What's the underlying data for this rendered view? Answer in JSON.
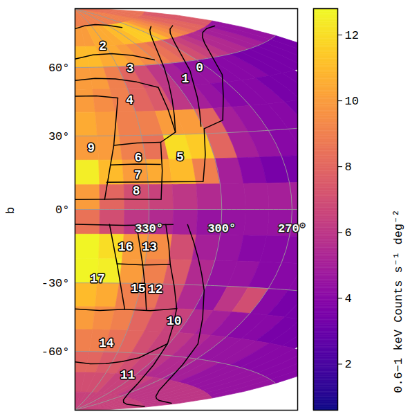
{
  "chart_data": {
    "type": "sky_map",
    "ylabel": "b",
    "xlim": [
      360,
      267.5
    ],
    "ylim": [
      -90,
      90
    ],
    "xticks": [
      {
        "value": 330,
        "label": "330°"
      },
      {
        "value": 300,
        "label": "300°"
      },
      {
        "value": 270,
        "label": "270°"
      }
    ],
    "yticks": [
      {
        "value": 60,
        "label": "60°"
      },
      {
        "value": 30,
        "label": "30°"
      },
      {
        "value": 0,
        "label": "0°"
      },
      {
        "value": -30,
        "label": "-30°"
      },
      {
        "value": -60,
        "label": "-60°"
      }
    ],
    "grid": true,
    "heatmap": {
      "l_edges": [
        360,
        350,
        340,
        330,
        320,
        310,
        300,
        290,
        280,
        270,
        260,
        250,
        240,
        230,
        220,
        210,
        200,
        190,
        180
      ],
      "b_edges": [
        90,
        80,
        70,
        60,
        50,
        40,
        30,
        20,
        10,
        0,
        -10,
        -20,
        -30,
        -40,
        -50,
        -60,
        -70,
        -80,
        -90
      ],
      "values": [
        [
          9,
          9,
          9,
          9,
          9,
          9,
          9,
          9,
          9,
          9,
          9,
          9,
          9,
          8.5,
          8.5,
          8.5,
          8.5,
          8.5
        ],
        [
          10,
          10,
          10.5,
          10.5,
          10.5,
          11,
          11,
          11.5,
          11.5,
          11,
          10,
          9.5,
          9,
          8.5,
          8,
          8,
          7.5,
          7.5
        ],
        [
          11,
          11,
          10.5,
          10.5,
          10,
          9.5,
          9,
          8.5,
          8,
          7,
          6.5,
          6,
          5.5,
          5.5,
          5,
          5,
          4.5,
          4.5
        ],
        [
          10,
          10,
          9,
          8,
          7,
          6,
          5,
          4.5,
          4.5,
          4,
          4,
          4,
          3.5,
          3.5,
          3.5,
          3.5,
          3.5,
          3.5
        ],
        [
          10,
          9.5,
          9,
          8,
          7.5,
          6,
          5,
          4.5,
          4,
          4,
          4,
          3.5,
          3.5,
          3.5,
          null,
          null,
          null,
          null
        ],
        [
          10.5,
          10,
          9,
          9,
          10,
          10,
          8,
          5,
          4.5,
          4,
          4,
          3.5,
          null,
          null,
          null,
          null,
          null,
          null
        ],
        [
          10,
          10,
          9,
          8.5,
          12,
          11.5,
          8,
          5,
          4.5,
          4,
          4,
          null,
          null,
          null,
          null,
          null,
          null,
          null
        ],
        [
          12.5,
          11,
          10,
          10.5,
          11,
          9,
          5,
          4,
          3.5,
          3.5,
          null,
          null,
          null,
          null,
          null,
          null,
          null,
          null
        ],
        [
          10,
          8,
          7,
          6.5,
          6,
          5.5,
          5,
          5,
          5,
          5,
          null,
          null,
          null,
          null,
          null,
          null,
          null,
          null
        ],
        [
          8.5,
          7,
          6,
          5.5,
          5,
          4.5,
          4.5,
          4.5,
          4.5,
          4.5,
          null,
          null,
          null,
          null,
          null,
          null,
          null,
          null
        ],
        [
          12.7,
          12,
          10,
          9.5,
          7,
          5,
          4.5,
          4,
          4,
          4,
          null,
          null,
          null,
          null,
          null,
          null,
          null,
          null
        ],
        [
          12.7,
          12.5,
          10,
          9,
          7.5,
          5.5,
          4.5,
          4.5,
          4,
          4,
          4,
          null,
          null,
          null,
          null,
          null,
          null,
          null
        ],
        [
          11,
          10.5,
          9,
          8.5,
          7,
          5.5,
          4.5,
          6,
          7,
          4,
          3.5,
          3.5,
          null,
          null,
          null,
          null,
          null,
          null
        ],
        [
          10,
          9.5,
          9,
          8,
          7,
          6.5,
          5.5,
          5,
          4.5,
          4,
          4,
          3.5,
          3.5,
          3.5,
          null,
          null,
          null,
          null
        ],
        [
          9,
          9,
          8.5,
          8,
          7,
          6.5,
          6,
          5.5,
          5,
          4.5,
          4.5,
          4.5,
          4,
          4,
          4,
          4,
          4,
          4
        ],
        [
          8,
          8,
          7.5,
          7.5,
          7,
          6.5,
          6,
          5.5,
          5.5,
          5,
          5,
          4.5,
          4.5,
          4.5,
          4.5,
          4.5,
          4.5,
          4.5
        ],
        [
          7,
          7,
          7,
          7,
          6.5,
          6.5,
          6.5,
          6.5,
          6,
          6,
          6,
          6,
          6,
          6,
          6,
          6,
          6,
          6
        ],
        [
          6.5,
          6.5,
          6.5,
          6.5,
          6.5,
          6.5,
          6.5,
          6.5,
          6.5,
          6.5,
          6.5,
          6.5,
          6.5,
          6.5,
          6.5,
          6.5,
          6.5,
          6.5
        ]
      ]
    },
    "colorbar": {
      "label": "0.6−1 keV Counts s⁻¹ deg⁻²",
      "range": [
        0.6,
        12.8
      ],
      "ticks": [
        2,
        4,
        6,
        8,
        10,
        12
      ],
      "color": "plasma"
    },
    "regions": {
      "labels": [
        "0",
        "1",
        "2",
        "3",
        "4",
        "5",
        "6",
        "7",
        "8",
        "9",
        "10",
        "11",
        "12",
        "13",
        "14",
        "15",
        "16",
        "17"
      ],
      "l": [
        275,
        292,
        333,
        322,
        331,
        315,
        333,
        334,
        335,
        353,
        307,
        308,
        323,
        329,
        340,
        331,
        339,
        350
      ],
      "b": [
        57,
        53,
        70,
        59,
        45,
        21,
        21,
        14,
        7.5,
        25,
        -45,
        -70,
        -32,
        -15,
        -56,
        -32,
        -15,
        -28
      ]
    },
    "outlines": [
      [
        [
          360,
          4
        ],
        [
          325,
          4
        ]
      ],
      [
        [
          360,
          47
        ],
        [
          337,
          46
        ],
        [
          343,
          26
        ],
        [
          348,
          4
        ]
      ],
      [
        [
          343,
          26
        ],
        [
          322,
          27
        ]
      ],
      [
        [
          345,
          18
        ],
        [
          324,
          18
        ]
      ],
      [
        [
          347,
          11
        ],
        [
          325,
          11
        ]
      ],
      [
        [
          322,
          27
        ],
        [
          325,
          4
        ]
      ],
      [
        [
          360,
          54
        ],
        [
          312,
          50
        ],
        [
          314,
          31
        ],
        [
          322,
          27
        ]
      ],
      [
        [
          360,
          64
        ],
        [
          300,
          62
        ]
      ],
      [
        [
          360,
          79
        ],
        [
          285,
          78
        ]
      ],
      [
        [
          247,
          76
        ],
        [
          299,
          58
        ],
        [
          314,
          31
        ]
      ],
      [
        [
          224,
          74
        ],
        [
          284,
          56
        ],
        [
          301,
          33
        ]
      ],
      [
        [
          194,
          69
        ],
        [
          267,
          53
        ],
        [
          289,
          35
        ],
        [
          300,
          32
        ],
        [
          307,
          11
        ],
        [
          325,
          11
        ]
      ],
      [
        [
          360,
          -6
        ],
        [
          320,
          -6
        ]
      ],
      [
        [
          346,
          -6
        ],
        [
          342,
          -22
        ],
        [
          335,
          -41
        ]
      ],
      [
        [
          323,
          -6
        ],
        [
          319,
          -22
        ],
        [
          309,
          -40
        ]
      ],
      [
        [
          342,
          -22
        ],
        [
          319,
          -22
        ]
      ],
      [
        [
          335,
          -6
        ],
        [
          331,
          -22
        ]
      ],
      [
        [
          331,
          -22
        ],
        [
          324,
          -41
        ]
      ],
      [
        [
          335,
          -41
        ],
        [
          309,
          -40
        ]
      ],
      [
        [
          314,
          -6
        ],
        [
          300,
          -32
        ],
        [
          282,
          -54
        ],
        [
          185,
          -76
        ]
      ],
      [
        [
          309,
          -40
        ],
        [
          301,
          -55
        ],
        [
          184,
          -80
        ]
      ],
      [
        [
          360,
          -65
        ],
        [
          312,
          -62
        ],
        [
          301,
          -55
        ]
      ],
      [
        [
          360,
          -41
        ],
        [
          335,
          -41
        ]
      ]
    ]
  }
}
